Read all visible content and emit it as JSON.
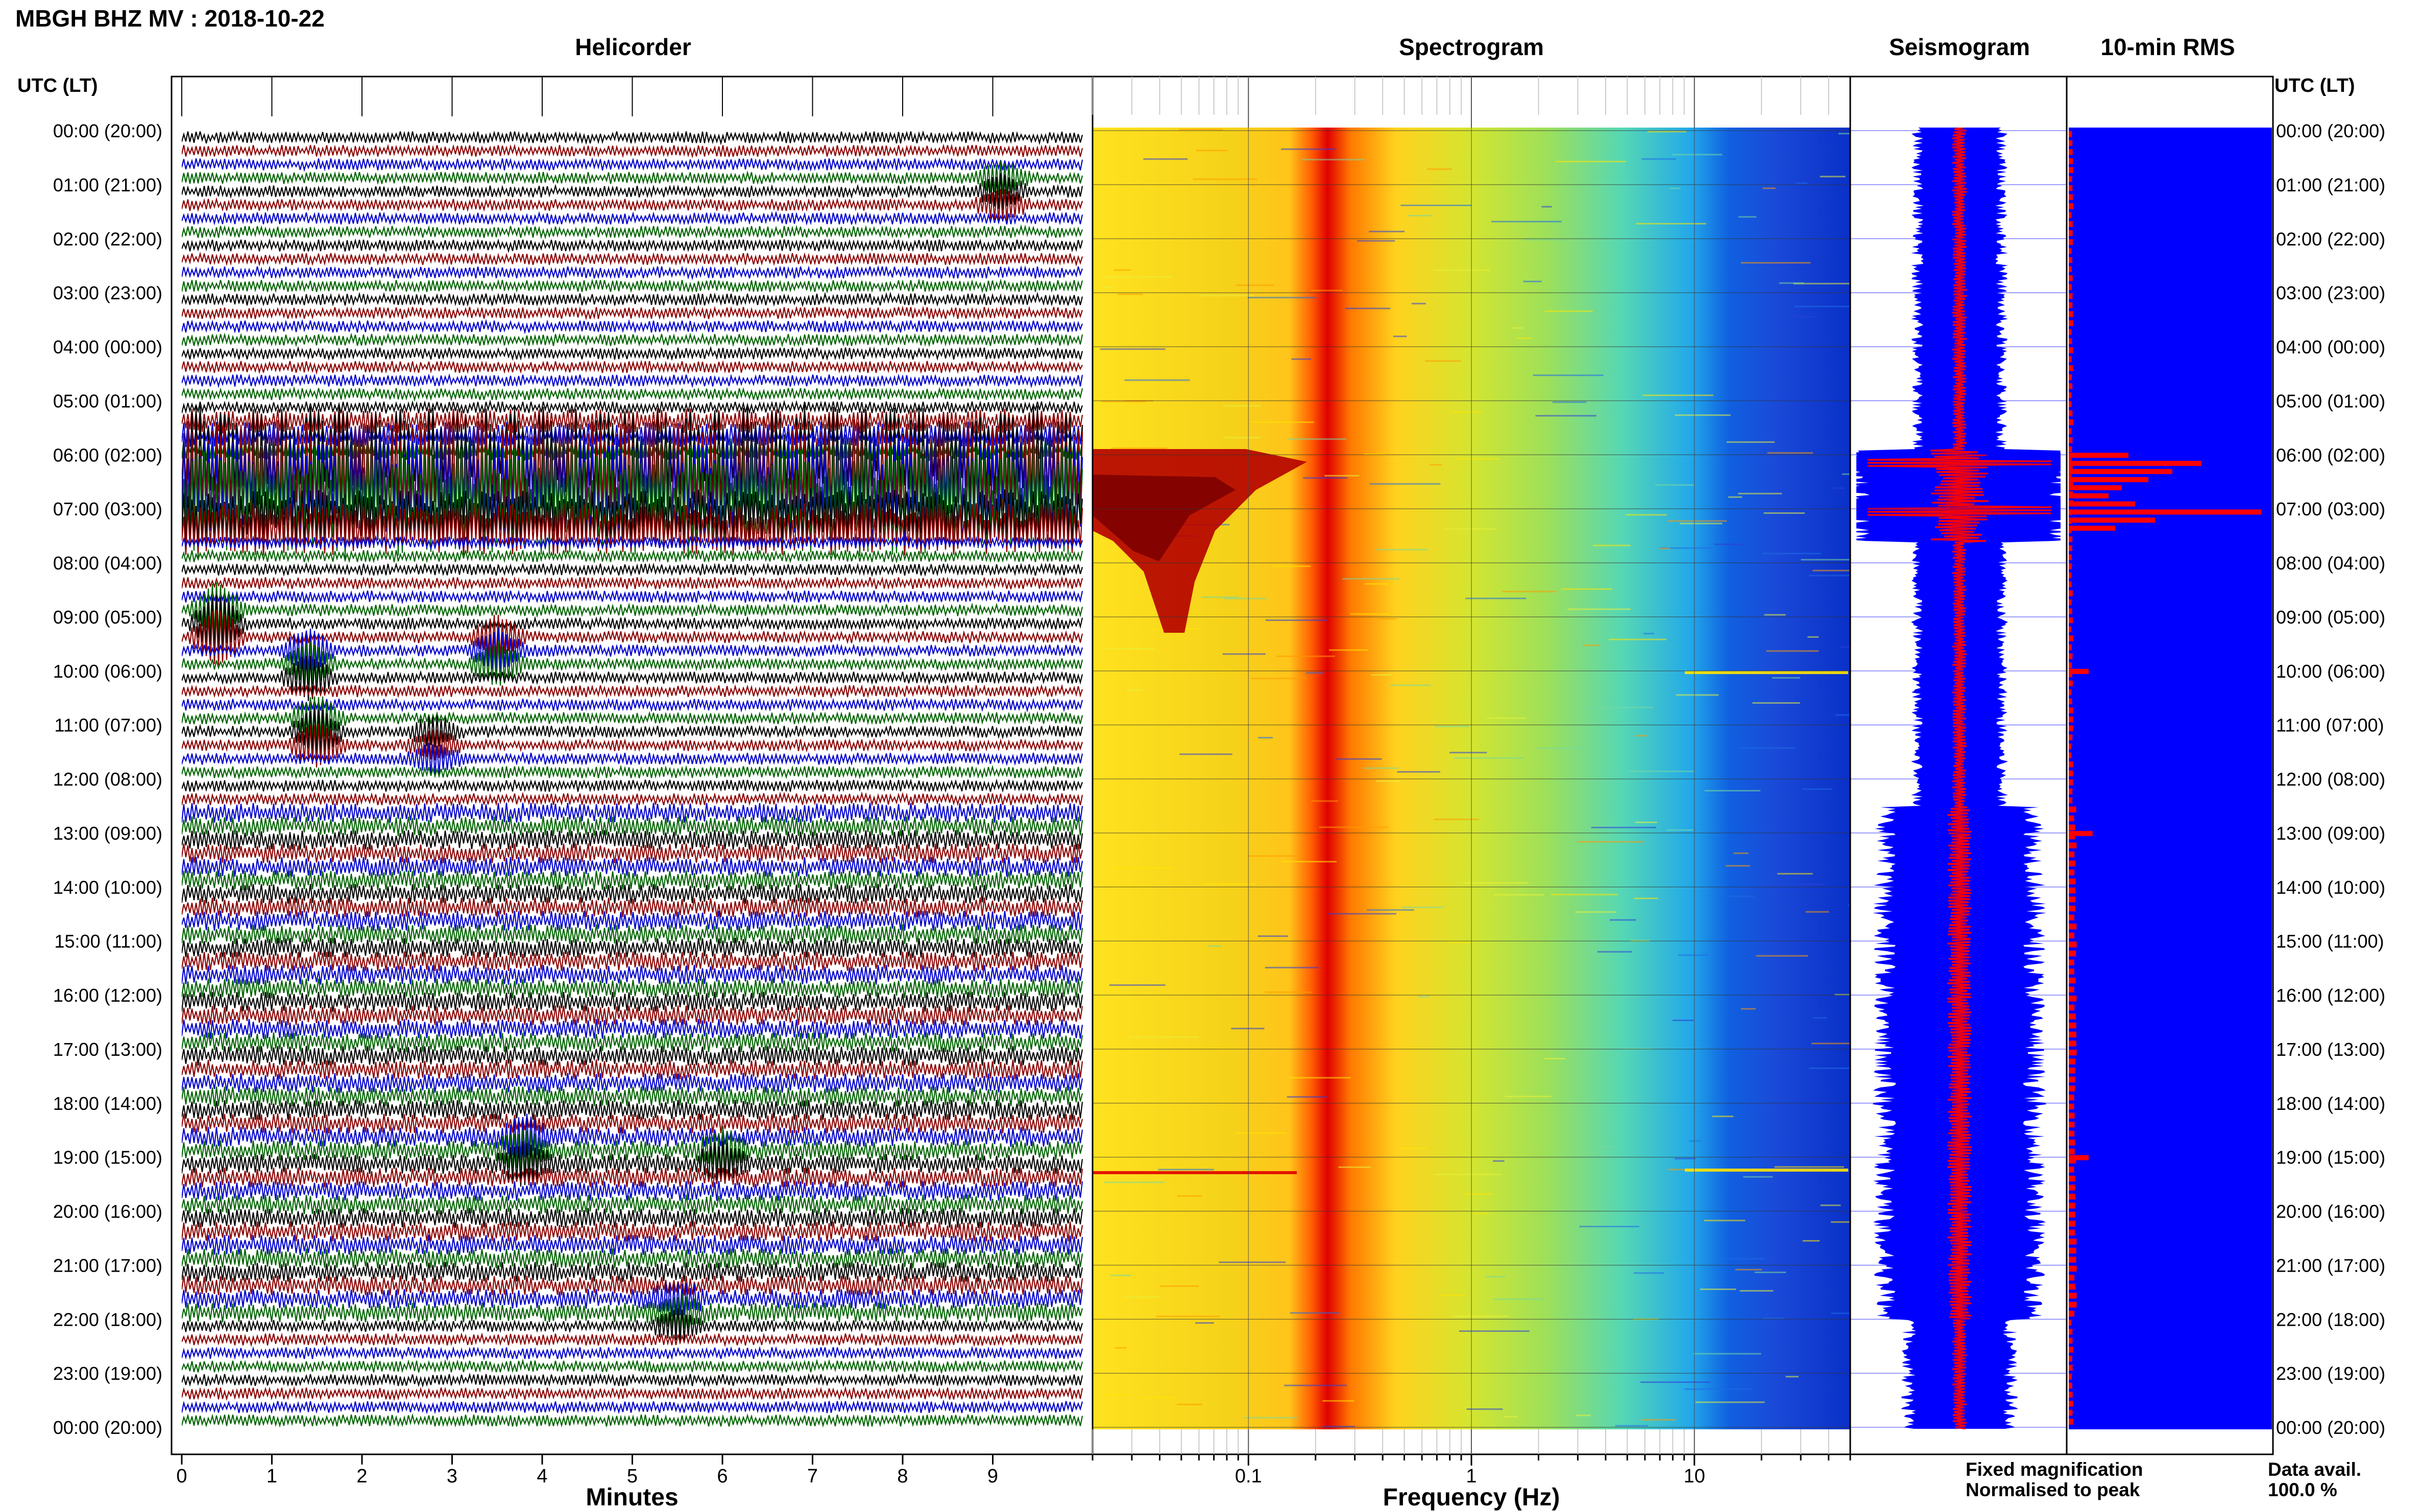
{
  "header": {
    "station_title": "MBGH BHZ MV : 2018-10-22",
    "utc_lt_label_left": "UTC (LT)",
    "utc_lt_label_right": "UTC (LT)"
  },
  "panels": {
    "helicorder_title": "Helicorder",
    "spectrogram_title": "Spectrogram",
    "seismogram_title": "Seismogram",
    "rms_title": "10-min RMS"
  },
  "helicorder": {
    "xlabel": "Minutes",
    "xticks": [
      "0",
      "1",
      "2",
      "3",
      "4",
      "5",
      "6",
      "7",
      "8",
      "9"
    ],
    "trace_colors": [
      "#000000",
      "#8b0000",
      "#0000cd",
      "#006400"
    ],
    "bursts": [
      {
        "hour": 0.95,
        "minute": 9.1,
        "amp": 2.2
      },
      {
        "hour": 6.1,
        "minute": 0.0,
        "amp": 6.0,
        "span": 10
      },
      {
        "hour": 9.1,
        "minute": 0.4,
        "amp": 4.0
      },
      {
        "hour": 9.5,
        "minute": 3.5,
        "amp": 3.0
      },
      {
        "hour": 9.8,
        "minute": 1.4,
        "amp": 3.0
      },
      {
        "hour": 11.0,
        "minute": 1.5,
        "amp": 3.2
      },
      {
        "hour": 11.3,
        "minute": 2.8,
        "amp": 2.0
      },
      {
        "hour": 18.7,
        "minute": 3.8,
        "amp": 2.5
      },
      {
        "hour": 18.9,
        "minute": 6.0,
        "amp": 2.5
      },
      {
        "hour": 21.8,
        "minute": 5.5,
        "amp": 2.0
      }
    ]
  },
  "spectrogram": {
    "xlabel": "Frequency (Hz)",
    "xscale": "log",
    "xlim": [
      0.02,
      50
    ],
    "xtick_labels": [
      "0.1",
      "1",
      "10"
    ],
    "xtick_values": [
      0.1,
      1,
      10
    ]
  },
  "seismogram": {
    "legend_fixed": "Fixed magnification",
    "legend_normalised": "Normalised to peak",
    "legend_fixed_color": "#0000ff",
    "legend_normalised_color": "#ff0000"
  },
  "rms": {
    "data_avail_label": "Data avail.",
    "data_avail_value": "100.0 %",
    "bar_color": "#ff0000",
    "background_color": "#0000ff"
  },
  "chart_data": {
    "type": "heatmap",
    "title": "MBGH BHZ MV : 2018-10-22",
    "ylabel": "UTC (LT)",
    "yticks_utc": [
      "00:00 (20:00)",
      "01:00 (21:00)",
      "02:00 (22:00)",
      "03:00 (23:00)",
      "04:00 (00:00)",
      "05:00 (01:00)",
      "06:00 (02:00)",
      "07:00 (03:00)",
      "08:00 (04:00)",
      "09:00 (05:00)",
      "10:00 (06:00)",
      "11:00 (07:00)",
      "12:00 (08:00)",
      "13:00 (09:00)",
      "14:00 (10:00)",
      "15:00 (11:00)",
      "16:00 (12:00)",
      "17:00 (13:00)",
      "18:00 (14:00)",
      "19:00 (15:00)",
      "20:00 (16:00)",
      "21:00 (17:00)",
      "22:00 (18:00)",
      "23:00 (19:00)",
      "00:00 (20:00)"
    ],
    "ylim_hours": [
      0,
      24
    ],
    "rms_events": [
      {
        "hour": 6.0,
        "relative": 0.45
      },
      {
        "hour": 6.15,
        "relative": 1.0
      },
      {
        "hour": 6.3,
        "relative": 0.78
      },
      {
        "hour": 6.45,
        "relative": 0.6
      },
      {
        "hour": 6.6,
        "relative": 0.4
      },
      {
        "hour": 6.75,
        "relative": 0.3
      },
      {
        "hour": 6.9,
        "relative": 0.5
      },
      {
        "hour": 7.05,
        "relative": 1.45
      },
      {
        "hour": 7.2,
        "relative": 0.65
      },
      {
        "hour": 7.35,
        "relative": 0.35
      },
      {
        "hour": 10.0,
        "relative": 0.15
      },
      {
        "hour": 13.0,
        "relative": 0.18
      },
      {
        "hour": 19.0,
        "relative": 0.15
      }
    ]
  }
}
